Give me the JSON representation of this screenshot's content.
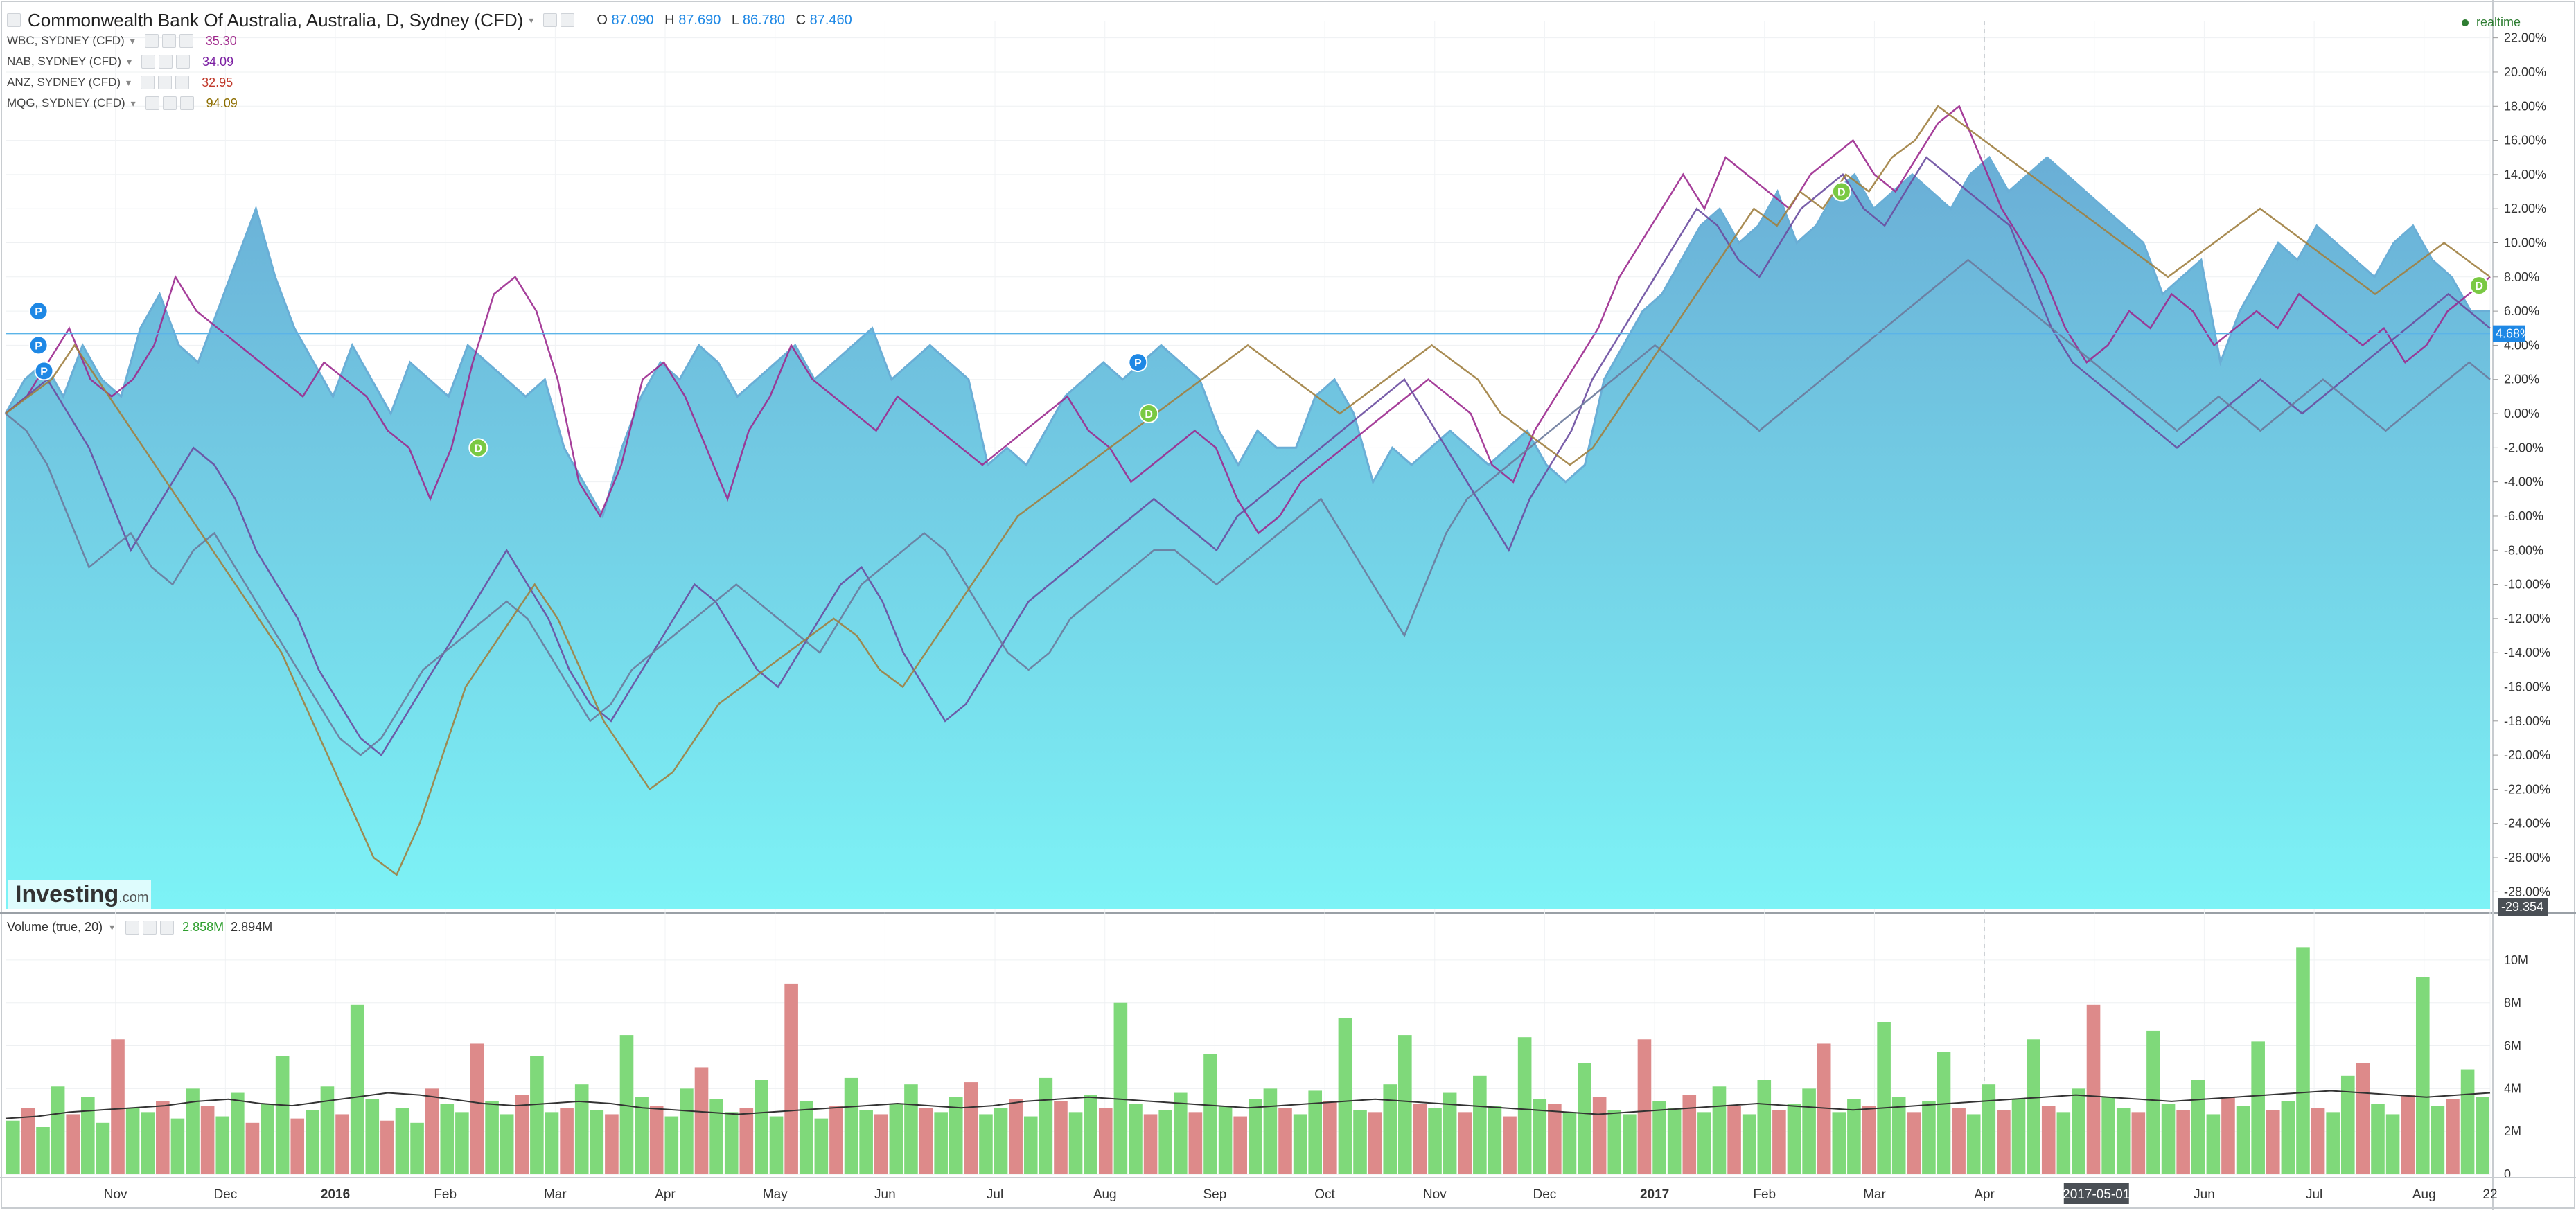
{
  "header": {
    "title": "Commonwealth Bank Of Australia, Australia, D, Sydney (CFD)",
    "ohlc": {
      "o_label": "O",
      "o": "87.090",
      "h_label": "H",
      "h": "87.690",
      "l_label": "L",
      "l": "86.780",
      "c_label": "C",
      "c": "87.460"
    },
    "realtime": "realtime"
  },
  "comparisons": [
    {
      "symbol": "WBC, SYDNEY (CFD)",
      "value": "35.30",
      "color": "#a0288c"
    },
    {
      "symbol": "NAB, SYDNEY (CFD)",
      "value": "34.09",
      "color": "#7b1fa2"
    },
    {
      "symbol": "ANZ, SYDNEY (CFD)",
      "value": "32.95",
      "color": "#c0392b"
    },
    {
      "symbol": "MQG, SYDNEY (CFD)",
      "value": "94.09",
      "color": "#8d6e00"
    }
  ],
  "volume_legend": {
    "label": "Volume (true, 20)",
    "v1": "2.858M",
    "v2": "2.894M"
  },
  "logo": {
    "brand": "Investing",
    "suffix": ".com"
  },
  "price_label": "4.68%",
  "crosshair_label": "-29.354",
  "date_label": "2017-05-01",
  "colors": {
    "cba_area_top": "#6aaed6",
    "cba_area_bottom": "#7df3f6",
    "wbc": "#9c2a8f",
    "nab": "#6a4ca0",
    "anz": "#6b7a9c",
    "mqg": "#a08040",
    "vol_up": "#7fd97a",
    "vol_down": "#dd8a8a"
  },
  "chart_data": [
    {
      "type": "area",
      "title": "Commonwealth Bank Of Australia, Australia, D, Sydney (CFD)",
      "ylim": [
        -29,
        23
      ],
      "ytick_labels": [
        "22.00%",
        "20.00%",
        "18.00%",
        "16.00%",
        "14.00%",
        "12.00%",
        "10.00%",
        "8.00%",
        "6.00%",
        "4.00%",
        "2.00%",
        "0.00%",
        "-2.00%",
        "-4.00%",
        "-6.00%",
        "-8.00%",
        "-10.00%",
        "-12.00%",
        "-14.00%",
        "-16.00%",
        "-18.00%",
        "-20.00%",
        "-22.00%",
        "-24.00%",
        "-26.00%",
        "-28.00%"
      ],
      "yticks": [
        22,
        20,
        18,
        16,
        14,
        12,
        10,
        8,
        6,
        4,
        2,
        0,
        -2,
        -4,
        -6,
        -8,
        -10,
        -12,
        -14,
        -16,
        -18,
        -20,
        -22,
        -24,
        -26,
        -28
      ],
      "x_labels": [
        "Nov",
        "Dec",
        "2016",
        "Feb",
        "Mar",
        "Apr",
        "May",
        "Jun",
        "Jul",
        "Aug",
        "Sep",
        "Oct",
        "Nov",
        "Dec",
        "2017",
        "Feb",
        "Mar",
        "Apr",
        "2017-05-01",
        "Jun",
        "Jul",
        "Aug",
        "22"
      ],
      "x_label_months": [
        1,
        2,
        3,
        4,
        5,
        6,
        7,
        8,
        9,
        10,
        11,
        12,
        13,
        14,
        15,
        16,
        17,
        18,
        19,
        20,
        21,
        22,
        22.6
      ],
      "series": [
        {
          "name": "Commonwealth Bank Of Australia",
          "key": "cba",
          "values": [
            0,
            2,
            3,
            1,
            4,
            2,
            1,
            5,
            7,
            4,
            3,
            6,
            9,
            12,
            8,
            5,
            3,
            1,
            4,
            2,
            0,
            3,
            2,
            1,
            4,
            3,
            2,
            1,
            2,
            -2,
            -4,
            -6,
            -2,
            1,
            3,
            2,
            4,
            3,
            1,
            2,
            3,
            4,
            2,
            3,
            4,
            5,
            2,
            3,
            4,
            3,
            2,
            -3,
            -2,
            -3,
            -1,
            1,
            2,
            3,
            2,
            3,
            4,
            3,
            2,
            -1,
            -3,
            -1,
            -2,
            -2,
            1,
            2,
            0,
            -4,
            -2,
            -3,
            -2,
            -1,
            -2,
            -3,
            -2,
            -1,
            -3,
            -4,
            -3,
            2,
            4,
            6,
            7,
            9,
            11,
            12,
            10,
            11,
            13,
            10,
            11,
            13,
            14,
            12,
            13,
            14,
            13,
            12,
            14,
            15,
            13,
            14,
            15,
            14,
            13,
            12,
            11,
            10,
            7,
            8,
            9,
            3,
            6,
            8,
            10,
            9,
            11,
            10,
            9,
            8,
            10,
            11,
            9,
            8,
            6,
            6
          ]
        },
        {
          "name": "WBC, SYDNEY (CFD)",
          "key": "wbc",
          "values": [
            0,
            1,
            3,
            5,
            2,
            1,
            2,
            4,
            8,
            6,
            5,
            4,
            3,
            2,
            1,
            3,
            2,
            1,
            -1,
            -2,
            -5,
            -2,
            3,
            7,
            8,
            6,
            2,
            -4,
            -6,
            -3,
            2,
            3,
            1,
            -2,
            -5,
            -1,
            1,
            4,
            2,
            1,
            0,
            -1,
            1,
            0,
            -1,
            -2,
            -3,
            -2,
            -1,
            0,
            1,
            -1,
            -2,
            -4,
            -3,
            -2,
            -1,
            -2,
            -5,
            -7,
            -6,
            -4,
            -3,
            -2,
            -1,
            0,
            1,
            2,
            1,
            0,
            -3,
            -4,
            -1,
            1,
            3,
            5,
            8,
            10,
            12,
            14,
            12,
            15,
            14,
            13,
            12,
            14,
            15,
            16,
            14,
            13,
            15,
            17,
            18,
            15,
            12,
            10,
            8,
            5,
            3,
            4,
            6,
            5,
            7,
            6,
            4,
            5,
            6,
            5,
            7,
            6,
            5,
            4,
            5,
            3,
            4,
            6,
            7,
            8
          ]
        },
        {
          "name": "NAB, SYDNEY (CFD)",
          "key": "nab",
          "values": [
            0,
            1,
            2,
            0,
            -2,
            -5,
            -8,
            -6,
            -4,
            -2,
            -3,
            -5,
            -8,
            -10,
            -12,
            -15,
            -17,
            -19,
            -20,
            -18,
            -16,
            -14,
            -12,
            -10,
            -8,
            -10,
            -12,
            -15,
            -17,
            -18,
            -16,
            -14,
            -12,
            -10,
            -11,
            -13,
            -15,
            -16,
            -14,
            -12,
            -10,
            -9,
            -11,
            -14,
            -16,
            -18,
            -17,
            -15,
            -13,
            -11,
            -10,
            -9,
            -8,
            -7,
            -6,
            -5,
            -6,
            -7,
            -8,
            -6,
            -5,
            -4,
            -3,
            -2,
            -1,
            0,
            1,
            2,
            0,
            -2,
            -4,
            -6,
            -8,
            -5,
            -3,
            -1,
            2,
            4,
            6,
            8,
            10,
            12,
            11,
            9,
            8,
            10,
            12,
            13,
            14,
            12,
            11,
            13,
            15,
            14,
            13,
            12,
            11,
            8,
            5,
            3,
            2,
            1,
            0,
            -1,
            -2,
            -1,
            0,
            1,
            2,
            1,
            0,
            1,
            2,
            3,
            4,
            5,
            6,
            7,
            6,
            5
          ]
        },
        {
          "name": "ANZ, SYDNEY (CFD)",
          "key": "anz",
          "values": [
            0,
            -1,
            -3,
            -6,
            -9,
            -8,
            -7,
            -9,
            -10,
            -8,
            -7,
            -9,
            -11,
            -13,
            -15,
            -17,
            -19,
            -20,
            -19,
            -17,
            -15,
            -14,
            -13,
            -12,
            -11,
            -12,
            -14,
            -16,
            -18,
            -17,
            -15,
            -14,
            -13,
            -12,
            -11,
            -10,
            -11,
            -12,
            -13,
            -14,
            -12,
            -10,
            -9,
            -8,
            -7,
            -8,
            -10,
            -12,
            -14,
            -15,
            -14,
            -12,
            -11,
            -10,
            -9,
            -8,
            -8,
            -9,
            -10,
            -9,
            -8,
            -7,
            -6,
            -5,
            -7,
            -9,
            -11,
            -13,
            -10,
            -7,
            -5,
            -4,
            -3,
            -2,
            -1,
            0,
            1,
            2,
            3,
            4,
            3,
            2,
            1,
            0,
            -1,
            0,
            1,
            2,
            3,
            4,
            5,
            6,
            7,
            8,
            9,
            8,
            7,
            6,
            5,
            4,
            3,
            2,
            1,
            0,
            -1,
            0,
            1,
            0,
            -1,
            0,
            1,
            2,
            1,
            0,
            -1,
            0,
            1,
            2,
            3,
            2
          ]
        },
        {
          "name": "MQG, SYDNEY (CFD)",
          "key": "mqg",
          "values": [
            0,
            1,
            2,
            4,
            2,
            0,
            -2,
            -4,
            -6,
            -8,
            -10,
            -12,
            -14,
            -17,
            -20,
            -23,
            -26,
            -27,
            -24,
            -20,
            -16,
            -14,
            -12,
            -10,
            -12,
            -15,
            -18,
            -20,
            -22,
            -21,
            -19,
            -17,
            -16,
            -15,
            -14,
            -13,
            -12,
            -13,
            -15,
            -16,
            -14,
            -12,
            -10,
            -8,
            -6,
            -5,
            -4,
            -3,
            -2,
            -1,
            0,
            1,
            2,
            3,
            4,
            3,
            2,
            1,
            0,
            1,
            2,
            3,
            4,
            3,
            2,
            0,
            -1,
            -2,
            -3,
            -2,
            0,
            2,
            4,
            6,
            8,
            10,
            12,
            11,
            13,
            12,
            14,
            13,
            15,
            16,
            18,
            17,
            16,
            15,
            14,
            13,
            12,
            11,
            10,
            9,
            8,
            9,
            10,
            11,
            12,
            11,
            10,
            9,
            8,
            7,
            8,
            9,
            10,
            9,
            8
          ]
        }
      ],
      "annotations": [
        {
          "label": "P",
          "kind": "dividend-p",
          "color": "#1e88e5",
          "month": 0.3,
          "value": 6
        },
        {
          "label": "P",
          "kind": "dividend-p",
          "color": "#1e88e5",
          "month": 0.3,
          "value": 4
        },
        {
          "label": "P",
          "kind": "dividend-p",
          "color": "#1e88e5",
          "month": 0.35,
          "value": 2.5
        },
        {
          "label": "D",
          "kind": "dividend-d",
          "color": "#7ac943",
          "month": 4.3,
          "value": -2
        },
        {
          "label": "P",
          "kind": "dividend-p",
          "color": "#1e88e5",
          "month": 10.3,
          "value": 3
        },
        {
          "label": "D",
          "kind": "dividend-d",
          "color": "#7ac943",
          "month": 10.4,
          "value": 0
        },
        {
          "label": "D",
          "kind": "dividend-d",
          "color": "#7ac943",
          "month": 16.7,
          "value": 13
        },
        {
          "label": "D",
          "kind": "dividend-d",
          "color": "#7ac943",
          "month": 22.5,
          "value": 7.5
        }
      ],
      "reference_line": {
        "value": 4.68,
        "label": "4.68%"
      }
    },
    {
      "type": "bar",
      "title": "Volume (true, 20)",
      "ylim": [
        0,
        11000000
      ],
      "ytick_labels": [
        "10M",
        "8M",
        "6M",
        "4M",
        "2M",
        "0"
      ],
      "yticks": [
        10000000,
        8000000,
        6000000,
        4000000,
        2000000,
        0
      ],
      "series": [
        {
          "name": "Volume",
          "key": "volume",
          "values": [
            2.5,
            3.1,
            2.2,
            4.1,
            2.8,
            3.6,
            2.4,
            6.3,
            3.1,
            2.9,
            3.4,
            2.6,
            4.0,
            3.2,
            2.7,
            3.8,
            2.4,
            3.3,
            5.5,
            2.6,
            3.0,
            4.1,
            2.8,
            7.9,
            3.5,
            2.5,
            3.1,
            2.4,
            4.0,
            3.3,
            2.9,
            6.1,
            3.4,
            2.8,
            3.7,
            5.5,
            2.9,
            3.1,
            4.2,
            3.0,
            2.8,
            6.5,
            3.6,
            3.2,
            2.7,
            4.0,
            5.0,
            3.5,
            2.9,
            3.1,
            4.4,
            2.7,
            8.9,
            3.4,
            2.6,
            3.2,
            4.5,
            3.0,
            2.8,
            3.3,
            4.2,
            3.1,
            2.9,
            3.6,
            4.3,
            2.8,
            3.1,
            3.5,
            2.7,
            4.5,
            3.4,
            2.9,
            3.7,
            3.1,
            8.0,
            3.3,
            2.8,
            3.0,
            3.8,
            2.9,
            5.6,
            3.2,
            2.7,
            3.5,
            4.0,
            3.1,
            2.8,
            3.9,
            3.4,
            7.3,
            3.0,
            2.9,
            4.2,
            6.5,
            3.3,
            3.1,
            3.8,
            2.9,
            4.6,
            3.2,
            2.7,
            6.4,
            3.5,
            3.3,
            2.9,
            5.2,
            3.6,
            3.0,
            2.8,
            6.3,
            3.4,
            3.1,
            3.7,
            2.9,
            4.1,
            3.2,
            2.8,
            4.4,
            3.0,
            3.3,
            4.0,
            6.1,
            2.9,
            3.5,
            3.2,
            7.1,
            3.6,
            2.9,
            3.4,
            5.7,
            3.1,
            2.8,
            4.2,
            3.0,
            3.5,
            6.3,
            3.2,
            2.9,
            4.0,
            7.9,
            3.6,
            3.1,
            2.9,
            6.7,
            3.3,
            3.0,
            4.4,
            2.8,
            3.6,
            3.2,
            6.2,
            3.0,
            3.4,
            10.6,
            3.1,
            2.9,
            4.6,
            5.2,
            3.3,
            2.8,
            3.7,
            9.2,
            3.2,
            3.5,
            4.9,
            3.6
          ]
        },
        {
          "name": "Volume MA",
          "key": "vol_ma",
          "values": [
            2.6,
            2.7,
            2.9,
            3.0,
            3.1,
            3.2,
            3.4,
            3.5,
            3.3,
            3.2,
            3.4,
            3.6,
            3.8,
            3.7,
            3.5,
            3.3,
            3.2,
            3.3,
            3.4,
            3.3,
            3.1,
            3.0,
            2.9,
            2.8,
            2.9,
            3.0,
            3.1,
            3.2,
            3.3,
            3.2,
            3.1,
            3.2,
            3.4,
            3.5,
            3.6,
            3.5,
            3.4,
            3.3,
            3.2,
            3.1,
            3.2,
            3.3,
            3.4,
            3.5,
            3.4,
            3.3,
            3.2,
            3.1,
            3.0,
            2.9,
            2.8,
            2.9,
            3.0,
            3.1,
            3.2,
            3.3,
            3.2,
            3.1,
            3.0,
            3.1,
            3.2,
            3.3,
            3.4,
            3.5,
            3.6,
            3.7,
            3.6,
            3.5,
            3.4,
            3.5,
            3.6,
            3.7,
            3.8,
            3.9,
            3.8,
            3.7,
            3.6,
            3.7,
            3.8
          ]
        }
      ]
    }
  ]
}
